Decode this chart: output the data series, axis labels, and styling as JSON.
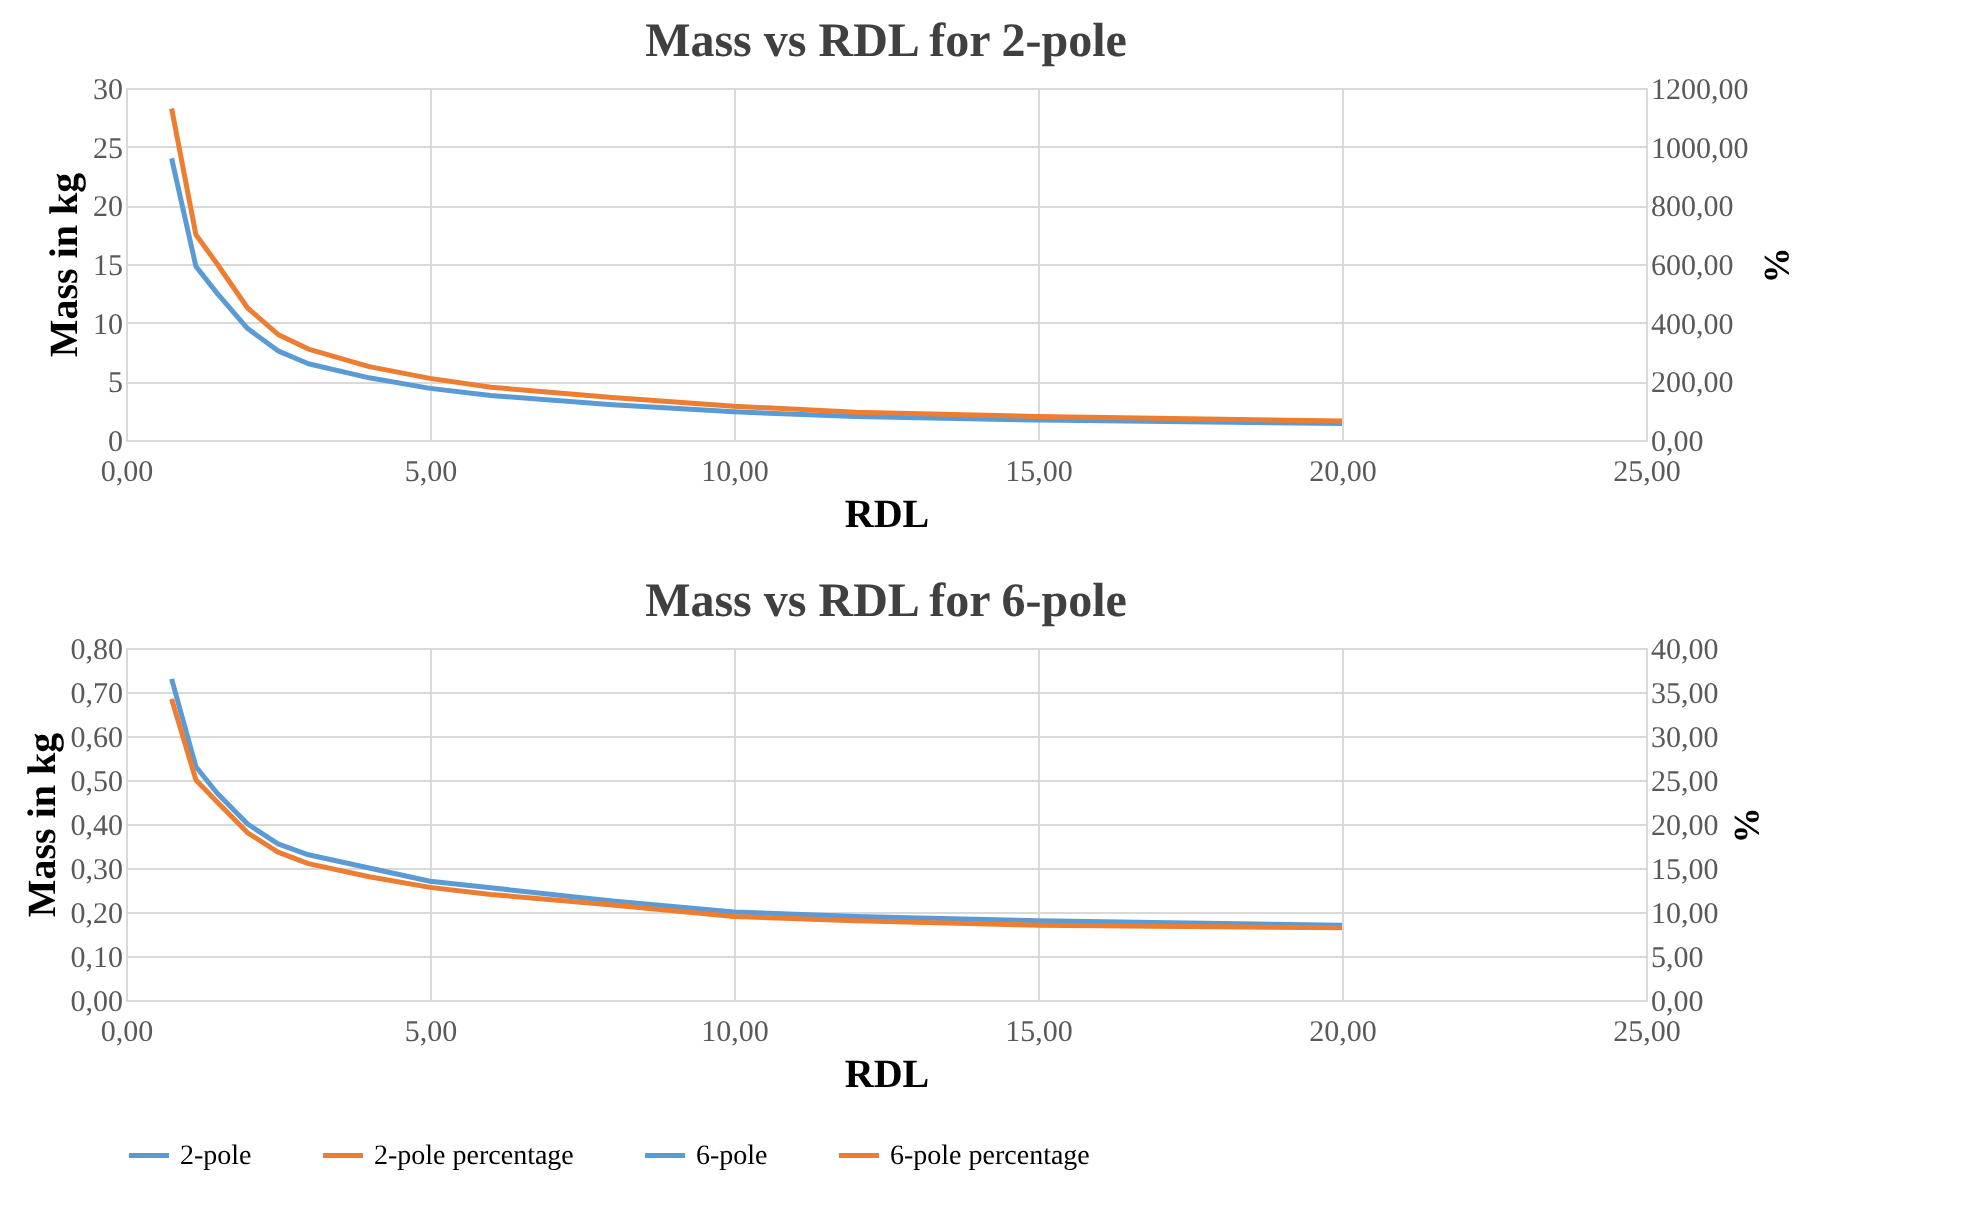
{
  "chart_data": [
    {
      "type": "line",
      "title": "Mass vs RDL for 2-pole",
      "xlabel": "RDL",
      "ylabel": "Mass in kg",
      "y2label": "%",
      "grid": true,
      "legend": "bottom",
      "x": [
        0.75,
        1.15,
        1.5,
        2,
        2.5,
        3,
        4,
        5,
        6,
        8,
        10,
        12,
        15,
        20
      ],
      "series": [
        {
          "name": "2-pole",
          "color": "#5b9bd5",
          "values": [
            24,
            14.8,
            12.5,
            9.5,
            7.6,
            6.5,
            5.3,
            4.4,
            3.8,
            3.0,
            2.4,
            2.0,
            1.7,
            1.4
          ]
        },
        {
          "name": "2-pole percentage",
          "color": "#ed7d31",
          "axis": "y2",
          "values": [
            1130,
            700,
            600,
            450,
            360,
            310,
            250,
            210,
            180,
            145,
            115,
            95,
            80,
            65
          ]
        }
      ],
      "xlim": [
        0,
        25
      ],
      "xticks": [
        {
          "value": 0,
          "label": "0,00"
        },
        {
          "value": 5,
          "label": "5,00"
        },
        {
          "value": 10,
          "label": "10,00"
        },
        {
          "value": 15,
          "label": "15,00"
        },
        {
          "value": 20,
          "label": "20,00"
        },
        {
          "value": 25,
          "label": "25,00"
        }
      ],
      "ylim": [
        0,
        30
      ],
      "yticks": [
        0,
        5,
        10,
        15,
        20,
        25,
        30
      ],
      "y2lim": [
        0,
        1200
      ],
      "y2ticks": [
        {
          "value": 0,
          "label": "0,00"
        },
        {
          "value": 200,
          "label": "200,00"
        },
        {
          "value": 400,
          "label": "400,00"
        },
        {
          "value": 600,
          "label": "600,00"
        },
        {
          "value": 800,
          "label": "800,00"
        },
        {
          "value": 1000,
          "label": "1000,00"
        },
        {
          "value": 1200,
          "label": "1200,00"
        }
      ]
    },
    {
      "type": "line",
      "title": "Mass vs RDL for 6-pole",
      "xlabel": "RDL",
      "ylabel": "Mass in kg",
      "y2label": "%",
      "grid": true,
      "legend": "bottom",
      "x": [
        0.75,
        1.15,
        1.5,
        2,
        2.5,
        3,
        4,
        5,
        6,
        8,
        10,
        12,
        15,
        20
      ],
      "series": [
        {
          "name": "6-pole",
          "color": "#5b9bd5",
          "values": [
            0.73,
            0.53,
            0.47,
            0.4,
            0.355,
            0.33,
            0.3,
            0.27,
            0.255,
            0.225,
            0.2,
            0.19,
            0.18,
            0.17
          ]
        },
        {
          "name": "6-pole percentage",
          "color": "#ed7d31",
          "axis": "y2",
          "values": [
            34.2,
            25,
            22.5,
            19,
            16.8,
            15.5,
            14,
            12.8,
            12,
            10.8,
            9.5,
            9,
            8.5,
            8.2
          ]
        }
      ],
      "xlim": [
        0,
        25
      ],
      "xticks": [
        {
          "value": 0,
          "label": "0,00"
        },
        {
          "value": 5,
          "label": "5,00"
        },
        {
          "value": 10,
          "label": "10,00"
        },
        {
          "value": 15,
          "label": "15,00"
        },
        {
          "value": 20,
          "label": "20,00"
        },
        {
          "value": 25,
          "label": "25,00"
        }
      ],
      "ylim": [
        0,
        0.8
      ],
      "yticks": [
        {
          "value": 0,
          "label": "0,00"
        },
        {
          "value": 0.1,
          "label": "0,10"
        },
        {
          "value": 0.2,
          "label": "0,20"
        },
        {
          "value": 0.3,
          "label": "0,30"
        },
        {
          "value": 0.4,
          "label": "0,40"
        },
        {
          "value": 0.5,
          "label": "0,50"
        },
        {
          "value": 0.6,
          "label": "0,60"
        },
        {
          "value": 0.7,
          "label": "0,70"
        },
        {
          "value": 0.8,
          "label": "0,80"
        }
      ],
      "y2lim": [
        0,
        40
      ],
      "y2ticks": [
        {
          "value": 0,
          "label": "0,00"
        },
        {
          "value": 5,
          "label": "5,00"
        },
        {
          "value": 10,
          "label": "10,00"
        },
        {
          "value": 15,
          "label": "15,00"
        },
        {
          "value": 20,
          "label": "20,00"
        },
        {
          "value": 25,
          "label": "25,00"
        },
        {
          "value": 30,
          "label": "30,00"
        },
        {
          "value": 35,
          "label": "35,00"
        },
        {
          "value": 40,
          "label": "40,00"
        }
      ]
    }
  ]
}
